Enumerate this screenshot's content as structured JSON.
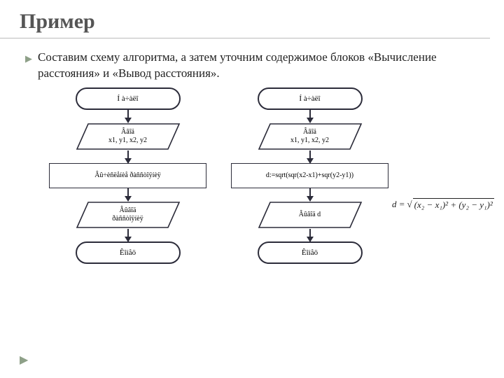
{
  "title": "Пример",
  "bullet_text": "Составим схему алгоритма, а затем уточним содержимое блоков «Вычисление расстояния» и «Вывод расстояния».",
  "flowchart": {
    "stroke_color": "#2c2c3a",
    "stroke_width": 1.6,
    "left_column": {
      "start": {
        "type": "terminator",
        "label": "Í à÷àëî"
      },
      "input": {
        "type": "parallelogram",
        "label": "Ââîä\nx1, y1, x2, y2"
      },
      "process": {
        "type": "process",
        "label": "Âû÷èñëåíèå ðàññòîÿíèÿ"
      },
      "output": {
        "type": "parallelogram",
        "label": "Âûâîä\nðàññòîÿíèÿ"
      },
      "end": {
        "type": "terminator",
        "label": "Êîíåö"
      }
    },
    "right_column": {
      "start": {
        "type": "terminator",
        "label": "Í à÷àëî"
      },
      "input": {
        "type": "parallelogram",
        "label": "Ââîä\nx1, y1, x2, y2"
      },
      "process": {
        "type": "process",
        "label": "d:=sqrt(sqr(x2-x1)+sqr(y2-y1))"
      },
      "output": {
        "type": "parallelogram",
        "label": "Âûâîä d"
      },
      "end": {
        "type": "terminator",
        "label": "Êîíåö"
      }
    }
  },
  "formula": {
    "lhs": "d =",
    "radicand": "(x₂ − x₁)² + (y₂ − y₁)²"
  },
  "colors": {
    "title_color": "#555555",
    "text_color": "#222222",
    "accent": "#8ea088",
    "background": "#ffffff",
    "border_rule": "#bbbbbb"
  },
  "typography": {
    "title_fontsize": 30,
    "body_fontsize": 17,
    "node_fontsize": 10,
    "font_family": "Times New Roman"
  }
}
